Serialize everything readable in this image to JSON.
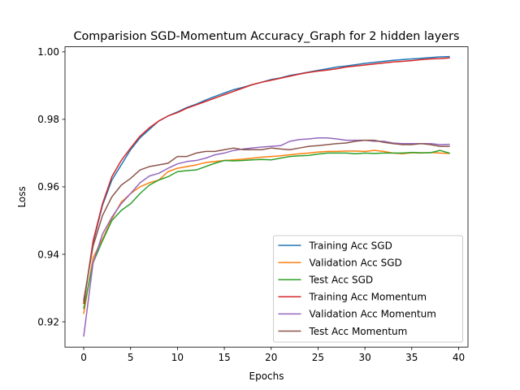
{
  "chart_data": {
    "type": "line",
    "title": "Comparision SGD-Momentum Accuracy_Graph for 2 hidden layers",
    "xlabel": "Epochs",
    "ylabel": "Loss",
    "xlim": [
      -2,
      41
    ],
    "ylim": [
      0.9125,
      1.0015
    ],
    "xticks": [
      0,
      5,
      10,
      15,
      20,
      25,
      30,
      35,
      40
    ],
    "yticks": [
      0.92,
      0.94,
      0.96,
      0.98,
      1.0
    ],
    "xtick_labels": [
      "0",
      "5",
      "10",
      "15",
      "20",
      "25",
      "30",
      "35",
      "40"
    ],
    "ytick_labels": [
      "0.92",
      "0.94",
      "0.96",
      "0.98",
      "1.00"
    ],
    "grid": false,
    "legend_position": "lower-right",
    "x": [
      0,
      1,
      2,
      3,
      4,
      5,
      6,
      7,
      8,
      9,
      10,
      11,
      12,
      13,
      14,
      15,
      16,
      17,
      18,
      19,
      20,
      21,
      22,
      23,
      24,
      25,
      26,
      27,
      28,
      29,
      30,
      31,
      32,
      33,
      34,
      35,
      36,
      37,
      38,
      39
    ],
    "series": [
      {
        "name": "Training Acc SGD",
        "color": "#1f77b4",
        "values": [
          0.9255,
          0.9435,
          0.9545,
          0.962,
          0.9665,
          0.971,
          0.9745,
          0.977,
          0.9795,
          0.981,
          0.9822,
          0.9835,
          0.9845,
          0.9857,
          0.9868,
          0.9878,
          0.9888,
          0.9895,
          0.9903,
          0.991,
          0.9918,
          0.9923,
          0.993,
          0.9935,
          0.994,
          0.9945,
          0.995,
          0.9955,
          0.9958,
          0.9962,
          0.9966,
          0.9969,
          0.9972,
          0.9975,
          0.9977,
          0.9979,
          0.9981,
          0.9983,
          0.9985,
          0.9986
        ]
      },
      {
        "name": "Validation Acc SGD",
        "color": "#ff7f0e",
        "values": [
          0.9225,
          0.939,
          0.9445,
          0.9505,
          0.9555,
          0.958,
          0.96,
          0.9612,
          0.962,
          0.9645,
          0.9655,
          0.966,
          0.9665,
          0.9672,
          0.9675,
          0.9678,
          0.968,
          0.9682,
          0.9685,
          0.9688,
          0.969,
          0.9692,
          0.9695,
          0.9698,
          0.97,
          0.9703,
          0.9705,
          0.9705,
          0.9706,
          0.9706,
          0.9705,
          0.9708,
          0.9705,
          0.97,
          0.9698,
          0.9701,
          0.97,
          0.9702,
          0.97,
          0.9699
        ]
      },
      {
        "name": "Test Acc SGD",
        "color": "#2ca02c",
        "values": [
          0.924,
          0.9375,
          0.944,
          0.95,
          0.953,
          0.955,
          0.958,
          0.9605,
          0.962,
          0.963,
          0.9645,
          0.9648,
          0.965,
          0.966,
          0.967,
          0.9678,
          0.9677,
          0.9678,
          0.968,
          0.9681,
          0.968,
          0.9685,
          0.969,
          0.9692,
          0.9693,
          0.9697,
          0.97,
          0.97,
          0.97,
          0.9698,
          0.97,
          0.9699,
          0.97,
          0.97,
          0.97,
          0.9702,
          0.9701,
          0.9701,
          0.9708,
          0.97
        ]
      },
      {
        "name": "Training Acc Momentum",
        "color": "#d62728",
        "values": [
          0.9255,
          0.944,
          0.955,
          0.963,
          0.9678,
          0.9715,
          0.975,
          0.9775,
          0.9795,
          0.981,
          0.982,
          0.9833,
          0.9843,
          0.9853,
          0.9863,
          0.9873,
          0.9883,
          0.9893,
          0.9903,
          0.991,
          0.9916,
          0.9922,
          0.9928,
          0.9934,
          0.9939,
          0.9943,
          0.9946,
          0.995,
          0.9955,
          0.9958,
          0.9961,
          0.9964,
          0.9967,
          0.997,
          0.9972,
          0.9974,
          0.9977,
          0.9979,
          0.998,
          0.9982
        ]
      },
      {
        "name": "Validation Acc Momentum",
        "color": "#9467bd",
        "values": [
          0.9158,
          0.9375,
          0.946,
          0.951,
          0.955,
          0.958,
          0.9612,
          0.9632,
          0.964,
          0.9655,
          0.9668,
          0.9675,
          0.9678,
          0.9685,
          0.9695,
          0.97,
          0.9708,
          0.9712,
          0.9715,
          0.9718,
          0.972,
          0.9722,
          0.9735,
          0.974,
          0.9742,
          0.9745,
          0.9745,
          0.9742,
          0.9738,
          0.9738,
          0.9738,
          0.9735,
          0.9735,
          0.973,
          0.9728,
          0.9728,
          0.9728,
          0.9728,
          0.9725,
          0.9726
        ]
      },
      {
        "name": "Test Acc Momentum",
        "color": "#8c564b",
        "values": [
          0.9265,
          0.9425,
          0.9515,
          0.957,
          0.9605,
          0.9625,
          0.965,
          0.966,
          0.9665,
          0.967,
          0.969,
          0.969,
          0.97,
          0.9705,
          0.9705,
          0.971,
          0.9715,
          0.971,
          0.971,
          0.971,
          0.9715,
          0.9712,
          0.971,
          0.9715,
          0.972,
          0.9722,
          0.9725,
          0.9728,
          0.973,
          0.9735,
          0.9738,
          0.9738,
          0.9732,
          0.9728,
          0.9725,
          0.9725,
          0.9728,
          0.9725,
          0.972,
          0.972
        ]
      }
    ]
  }
}
